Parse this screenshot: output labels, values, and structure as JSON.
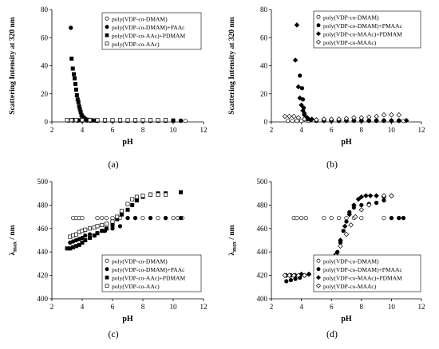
{
  "chart_data": [
    {
      "panel_label": "(a)",
      "type": "scatter",
      "xlabel": "pH",
      "ylabel": "Scattering Intensity at 320 nm",
      "xlim": [
        2,
        12
      ],
      "ylim": [
        0,
        80
      ],
      "xticks": [
        2,
        4,
        6,
        8,
        10,
        12
      ],
      "yticks": [
        0,
        20,
        40,
        60,
        80
      ],
      "legend_position": "top-right",
      "series": [
        {
          "name": "poly(VDP-co-DMAM)",
          "marker": "circle-open",
          "x": [
            3.1,
            3.4,
            3.7,
            4.0,
            4.5,
            5.0,
            5.5,
            6.0,
            6.5,
            7.0,
            7.5,
            8.0,
            8.5,
            9.0,
            9.5,
            10.0,
            10.5,
            10.8
          ],
          "y": [
            0.8,
            0.8,
            0.8,
            0.8,
            0.8,
            0.8,
            0.8,
            0.8,
            0.8,
            0.8,
            0.8,
            0.8,
            0.8,
            0.8,
            0.8,
            0.8,
            0.8,
            0.8
          ]
        },
        {
          "name": "poly(VDP-co-DMAM)+PAAc",
          "marker": "circle-filled",
          "x": [
            3.25,
            3.4,
            3.6,
            3.8,
            4.0,
            4.3,
            4.6,
            5.0,
            5.5,
            6.0,
            6.5,
            7.0,
            7.5,
            8.0,
            8.5,
            9.0,
            9.5,
            10.0,
            10.5
          ],
          "y": [
            67,
            1.5,
            1.2,
            1.2,
            1.0,
            1.0,
            1.0,
            1.0,
            1.0,
            1.0,
            1.0,
            1.0,
            1.0,
            1.0,
            1.0,
            1.0,
            1.0,
            1.0,
            1.0
          ]
        },
        {
          "name": "poly(VDP-co-AAc)+PDMAM",
          "marker": "square-filled",
          "x": [
            3.3,
            3.38,
            3.45,
            3.5,
            3.55,
            3.6,
            3.65,
            3.7,
            3.75,
            3.8,
            3.85,
            3.9,
            3.95,
            4.0,
            4.1,
            4.2,
            4.4,
            4.6,
            4.8,
            5.0,
            5.5,
            6.0,
            6.5,
            7.0,
            7.5,
            8.0,
            8.5,
            9.0,
            9.5,
            10.0
          ],
          "y": [
            45,
            38,
            34,
            31,
            27,
            23,
            19,
            16,
            14,
            11,
            9,
            7,
            5,
            4,
            3,
            2,
            1.5,
            1.2,
            1,
            1,
            1,
            1,
            1,
            1,
            1,
            1,
            1,
            1,
            1,
            1
          ]
        },
        {
          "name": "poly(VDP-co-AAc)",
          "marker": "square-open",
          "x": [
            3.0,
            3.3,
            3.6,
            4.0,
            4.5,
            5.0,
            5.5,
            6.0,
            6.5,
            7.0,
            7.5,
            8.0,
            8.5,
            9.0,
            9.5
          ],
          "y": [
            1.3,
            1.3,
            1.3,
            1.3,
            1.3,
            1.3,
            1.3,
            1.3,
            1.3,
            1.3,
            1.3,
            1.3,
            1.3,
            1.3,
            1.3
          ]
        }
      ]
    },
    {
      "panel_label": "(b)",
      "type": "scatter",
      "xlabel": "pH",
      "ylabel": "Scattering Intensity at 320 nm",
      "xlim": [
        2,
        12
      ],
      "ylim": [
        0,
        80
      ],
      "xticks": [
        2,
        4,
        6,
        8,
        10,
        12
      ],
      "yticks": [
        0,
        20,
        40,
        60,
        80
      ],
      "legend_position": "top-right",
      "series": [
        {
          "name": "poly(VDP-co-DMAM)",
          "marker": "circle-open",
          "x": [
            3.1,
            3.4,
            3.7,
            4.0,
            4.5,
            5.0,
            5.5,
            6.0,
            6.5,
            7.0,
            7.5,
            8.0,
            8.5,
            9.0,
            9.5,
            10.0,
            10.5,
            10.8
          ],
          "y": [
            0.8,
            0.8,
            0.8,
            0.8,
            0.8,
            0.8,
            0.8,
            0.8,
            0.8,
            0.8,
            0.8,
            0.8,
            0.8,
            0.8,
            0.8,
            0.8,
            0.8,
            0.8
          ]
        },
        {
          "name": "poly(VDP-co-DMAM)+PMAAc",
          "marker": "circle-filled",
          "x": [
            3.9,
            4.05,
            4.1,
            4.15,
            4.2,
            4.3,
            4.4,
            4.6,
            5.0,
            5.5,
            6.0,
            6.5,
            7.0,
            7.5,
            8.0,
            8.5,
            9.0,
            9.5,
            10.0,
            10.5
          ],
          "y": [
            33,
            24,
            16,
            10,
            6,
            3,
            2,
            1.5,
            1,
            1,
            1,
            1,
            1,
            1,
            1,
            1,
            1,
            1,
            1,
            1
          ]
        },
        {
          "name": "poly(VDP-co-MAAc)+PDMAM",
          "marker": "diamond-filled",
          "x": [
            3.6,
            3.7,
            3.8,
            3.9,
            4.0,
            4.1,
            4.2,
            4.4,
            4.7,
            5.0,
            5.5,
            6.0,
            6.5,
            7.0,
            7.5,
            8.0,
            8.5,
            9.0,
            9.5,
            10.0,
            10.5,
            11.0
          ],
          "y": [
            44,
            69,
            25,
            17,
            12,
            8,
            5,
            3,
            2,
            1.5,
            1,
            1,
            1,
            1,
            1,
            1,
            1,
            1,
            1,
            1,
            1,
            1
          ]
        },
        {
          "name": "poly(VDP-co-MAAc)",
          "marker": "diamond-open",
          "x": [
            2.9,
            3.2,
            3.5,
            3.8,
            4.2,
            5.0,
            5.5,
            6.0,
            6.5,
            7.0,
            7.5,
            8.0,
            8.5,
            9.0,
            9.5,
            10.0,
            10.5
          ],
          "y": [
            4,
            4,
            4,
            3,
            2,
            1.5,
            2,
            2,
            2,
            2.5,
            3,
            3,
            3.5,
            4,
            5,
            5,
            5
          ]
        }
      ]
    },
    {
      "panel_label": "(c)",
      "type": "scatter",
      "xlabel": "pH",
      "ylabel": "λmax / nm",
      "xlim": [
        2,
        12
      ],
      "ylim": [
        400,
        500
      ],
      "xticks": [
        2,
        4,
        6,
        8,
        10,
        12
      ],
      "yticks": [
        400,
        420,
        440,
        460,
        480,
        500
      ],
      "legend_position": "bottom-right",
      "series": [
        {
          "name": "poly(VDP-co-DMAM)",
          "marker": "circle-open",
          "x": [
            3.4,
            3.6,
            3.8,
            4.0,
            5.0,
            5.3,
            5.6,
            6.0,
            6.5,
            7.0,
            7.5,
            8.0,
            8.5,
            9.0,
            9.5,
            10.0,
            10.3,
            10.6
          ],
          "y": [
            469,
            469,
            469,
            469,
            469,
            469,
            469,
            469,
            469,
            469,
            469,
            469,
            469,
            469,
            469,
            469,
            469,
            469
          ]
        },
        {
          "name": "poly(VDP-co-DMAM)+PAAc",
          "marker": "circle-filled",
          "x": [
            3.2,
            3.4,
            3.6,
            3.8,
            4.0,
            4.2,
            4.5,
            5.0,
            5.5,
            6.0,
            6.5,
            7.0,
            7.5,
            8.5,
            9.5,
            10.5
          ],
          "y": [
            448,
            449,
            450,
            451,
            452,
            454,
            455,
            456,
            458,
            460,
            462,
            469,
            469,
            469,
            469,
            469
          ]
        },
        {
          "name": "poly(VDP-co-AAc)+PDMAM",
          "marker": "square-filled",
          "x": [
            3.0,
            3.2,
            3.4,
            3.6,
            3.8,
            4.0,
            4.2,
            4.5,
            4.8,
            5.0,
            5.3,
            5.6,
            6.0,
            6.3,
            6.6,
            7.0,
            7.3,
            7.6,
            8.0,
            8.5,
            9.0,
            9.5,
            10.5
          ],
          "y": [
            443,
            443,
            444,
            445,
            446,
            448,
            450,
            452,
            454,
            456,
            458,
            460,
            463,
            468,
            472,
            476,
            480,
            484,
            487,
            489,
            490,
            490,
            491
          ]
        },
        {
          "name": "poly(VDP-co-AAc)",
          "marker": "square-open",
          "x": [
            3.2,
            3.4,
            3.6,
            3.8,
            4.0,
            4.2,
            4.5,
            4.8,
            5.0,
            5.3,
            5.6,
            6.0,
            6.3,
            6.6,
            7.0,
            7.3,
            7.6,
            8.0,
            8.5,
            9.0,
            9.5
          ],
          "y": [
            453,
            454,
            455,
            457,
            458,
            459,
            460,
            461,
            462,
            463,
            464,
            466,
            470,
            475,
            481,
            485,
            487,
            488,
            489,
            489,
            489
          ]
        }
      ]
    },
    {
      "panel_label": "(d)",
      "type": "scatter",
      "xlabel": "pH",
      "ylabel": "λmax / nm",
      "xlim": [
        2,
        12
      ],
      "ylim": [
        400,
        500
      ],
      "xticks": [
        2,
        4,
        6,
        8,
        10,
        12
      ],
      "yticks": [
        400,
        420,
        440,
        460,
        480,
        500
      ],
      "legend_position": "bottom-right",
      "series": [
        {
          "name": "poly(VDP-co-DMAM)",
          "marker": "circle-open",
          "x": [
            3.5,
            3.7,
            4.0,
            4.3,
            5.5,
            6.0,
            6.5,
            7.0,
            7.5,
            8.0,
            9.5,
            10.0,
            10.5,
            10.8
          ],
          "y": [
            469,
            469,
            469,
            469,
            469,
            469,
            469,
            469,
            469,
            469,
            469,
            469,
            469,
            469
          ]
        },
        {
          "name": "poly(VDP-co-DMAM)+PMAAc",
          "marker": "circle-filled",
          "x": [
            3.0,
            3.3,
            3.6,
            3.9,
            4.2,
            4.5,
            5.0,
            5.5,
            6.0,
            6.2,
            6.4,
            6.6,
            6.8,
            7.0,
            7.2,
            7.5,
            8.0,
            8.5,
            9.0,
            9.5,
            10.0,
            10.5,
            10.8
          ],
          "y": [
            415,
            416,
            417,
            418,
            420,
            421,
            423,
            426,
            430,
            434,
            440,
            448,
            458,
            466,
            474,
            478,
            480,
            481,
            482,
            484,
            469,
            469,
            469
          ]
        },
        {
          "name": "poly(VDP-co-MAAc)+PDMAM",
          "marker": "diamond-filled",
          "x": [
            3.0,
            3.3,
            3.6,
            4.0,
            4.5,
            5.0,
            5.5,
            6.0,
            6.3,
            6.6,
            6.9,
            7.2,
            7.5,
            7.8,
            8.0,
            8.3,
            8.6,
            9.0,
            9.5,
            10.0
          ],
          "y": [
            420,
            420,
            420,
            421,
            421,
            422,
            425,
            430,
            438,
            450,
            462,
            472,
            480,
            485,
            487,
            488,
            488,
            488,
            487,
            488
          ]
        },
        {
          "name": "poly(VDP-co-MAAc)",
          "marker": "diamond-open",
          "x": [
            2.9,
            3.2,
            3.5,
            3.8,
            4.2,
            5.0,
            5.5,
            6.0,
            6.3,
            6.6,
            7.0,
            7.3,
            7.6,
            8.0,
            8.5,
            9.5,
            10.0
          ],
          "y": [
            420,
            420,
            420,
            420,
            420,
            421,
            423,
            430,
            437,
            445,
            455,
            463,
            470,
            476,
            480,
            488,
            488
          ]
        }
      ]
    }
  ]
}
